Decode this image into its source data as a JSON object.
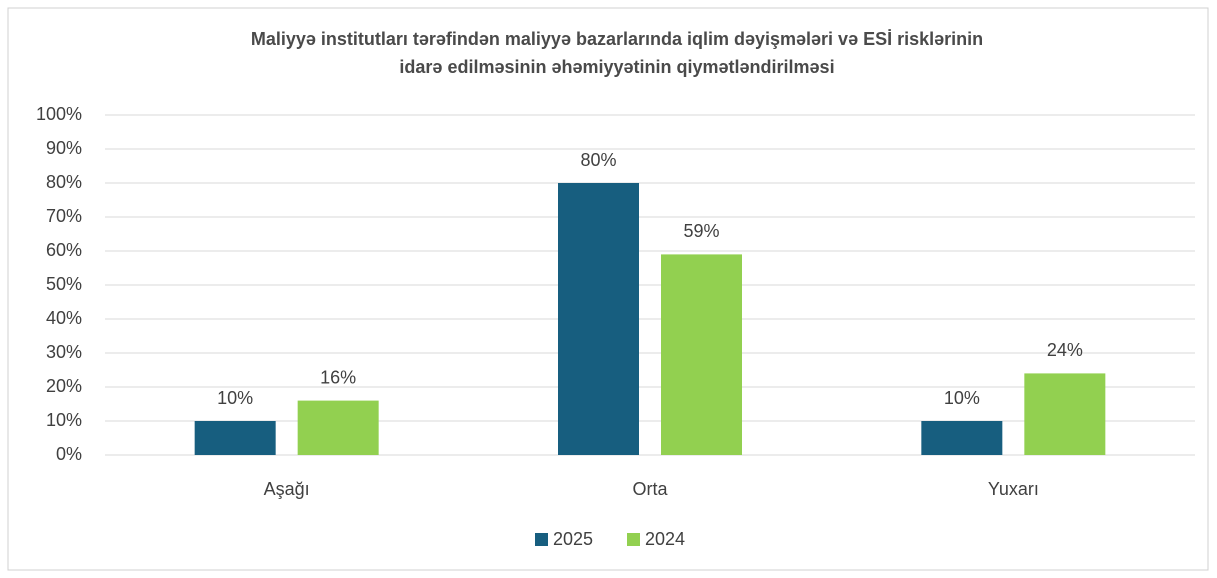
{
  "chart_data": {
    "type": "bar",
    "title": [
      "Maliyyə institutları tərəfindən maliyyə bazarlarında iqlim dəyişmələri və ESİ risklərinin",
      "idarə edilməsinin əhəmiyyətinin qiymətləndirilməsi"
    ],
    "categories": [
      "Aşağı",
      "Orta",
      "Yuxarı"
    ],
    "series": [
      {
        "name": "2025",
        "color": "#175e7f",
        "values": [
          10,
          80,
          10
        ],
        "value_labels": [
          "10%",
          "80%",
          "10%"
        ]
      },
      {
        "name": "2024",
        "color": "#92d050",
        "values": [
          16,
          59,
          24
        ],
        "value_labels": [
          "16%",
          "59%",
          "24%"
        ]
      }
    ],
    "ylim": [
      0,
      100
    ],
    "yticks": [
      {
        "value": 0,
        "label": "0%"
      },
      {
        "value": 10,
        "label": "10%"
      },
      {
        "value": 20,
        "label": "20%"
      },
      {
        "value": 30,
        "label": "30%"
      },
      {
        "value": 40,
        "label": "40%"
      },
      {
        "value": 50,
        "label": "50%"
      },
      {
        "value": 60,
        "label": "60%"
      },
      {
        "value": 70,
        "label": "70%"
      },
      {
        "value": 80,
        "label": "80%"
      },
      {
        "value": 90,
        "label": "90%"
      },
      {
        "value": 100,
        "label": "100%"
      }
    ],
    "grid": true,
    "legend": "bottom"
  }
}
